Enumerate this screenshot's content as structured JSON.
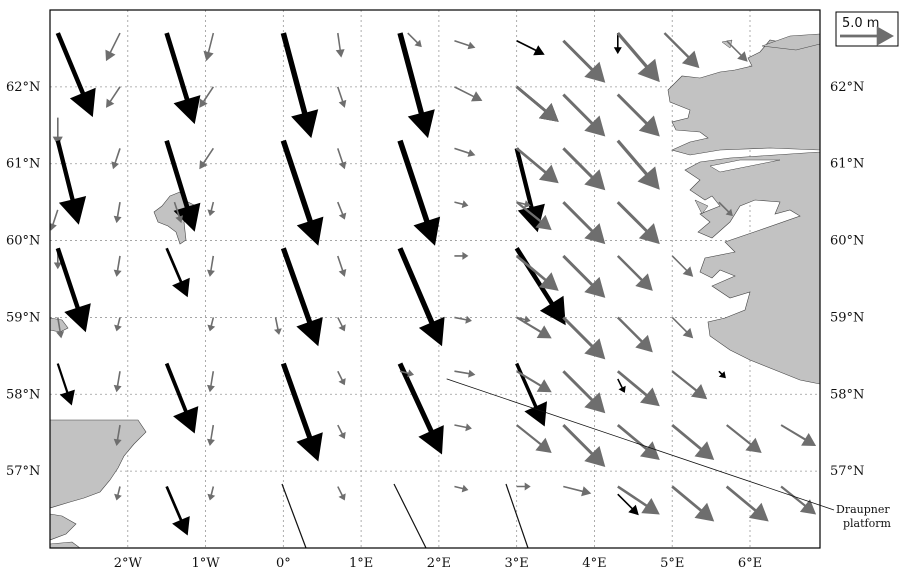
{
  "colors": {
    "land": "#c2c2c2",
    "land_edge": "#444444",
    "arrow_black": "#000000",
    "arrow_grey": "#6e6e6e",
    "grid": "#999999",
    "frame": "#000000",
    "background": "#ffffff"
  },
  "scale_arrow": {
    "label": "5.0 m",
    "length_m": 5.0
  },
  "lon_ticks": [
    {
      "value": -2,
      "label": "2°W"
    },
    {
      "value": -1,
      "label": "1°W"
    },
    {
      "value": 0,
      "label": "0°"
    },
    {
      "value": 1,
      "label": "1°E"
    },
    {
      "value": 2,
      "label": "2°E"
    },
    {
      "value": 3,
      "label": "3°E"
    },
    {
      "value": 4,
      "label": "4°E"
    },
    {
      "value": 5,
      "label": "5°E"
    },
    {
      "value": 6,
      "label": "6°E"
    }
  ],
  "lat_ticks": [
    {
      "value": 62,
      "label": "62°N"
    },
    {
      "value": 61,
      "label": "61°N"
    },
    {
      "value": 60,
      "label": "60°N"
    },
    {
      "value": 59,
      "label": "59°N"
    },
    {
      "value": 58,
      "label": "58°N"
    },
    {
      "value": 57,
      "label": "57°N"
    }
  ],
  "extent": {
    "lon": [
      -3.0,
      6.9
    ],
    "lat": [
      56.0,
      63.0
    ]
  },
  "annotation": {
    "lines": [
      "Draupner",
      "platform"
    ],
    "lon": 2.1,
    "lat": 58.2
  },
  "arrows": [
    {
      "lon": -2.9,
      "lat": 62.7,
      "u": 0.5,
      "v": -1.2,
      "c": "k"
    },
    {
      "lon": -2.1,
      "lat": 62.7,
      "u": -0.2,
      "v": -0.4,
      "c": "g"
    },
    {
      "lon": -1.5,
      "lat": 62.7,
      "u": 0.4,
      "v": -1.3,
      "c": "k"
    },
    {
      "lon": -0.9,
      "lat": 62.7,
      "u": -0.1,
      "v": -0.4,
      "c": "g"
    },
    {
      "lon": 0.0,
      "lat": 62.7,
      "u": 0.4,
      "v": -1.5,
      "c": "k"
    },
    {
      "lon": 0.7,
      "lat": 62.7,
      "u": 0.05,
      "v": -0.35,
      "c": "g"
    },
    {
      "lon": 1.5,
      "lat": 62.7,
      "u": 0.4,
      "v": -1.5,
      "c": "k"
    },
    {
      "lon": 1.6,
      "lat": 62.7,
      "u": 0.2,
      "v": -0.2,
      "c": "g"
    },
    {
      "lon": 2.2,
      "lat": 62.6,
      "u": 0.3,
      "v": -0.1,
      "c": "g"
    },
    {
      "lon": 3.0,
      "lat": 62.6,
      "u": 0.4,
      "v": -0.2,
      "c": "k"
    },
    {
      "lon": 3.6,
      "lat": 62.6,
      "u": 0.6,
      "v": -0.6,
      "c": "g"
    },
    {
      "lon": 4.3,
      "lat": 62.7,
      "u": 0.0,
      "v": -0.3,
      "c": "k"
    },
    {
      "lon": 4.3,
      "lat": 62.7,
      "u": 0.6,
      "v": -0.7,
      "c": "g"
    },
    {
      "lon": 4.9,
      "lat": 62.7,
      "u": 0.5,
      "v": -0.5,
      "c": "g"
    },
    {
      "lon": 5.7,
      "lat": 62.6,
      "u": 0.3,
      "v": -0.3,
      "c": "g"
    },
    {
      "lon": -2.9,
      "lat": 61.6,
      "u": 0.0,
      "v": -0.4,
      "c": "g"
    },
    {
      "lon": -2.1,
      "lat": 62.0,
      "u": -0.2,
      "v": -0.3,
      "c": "g"
    },
    {
      "lon": -0.9,
      "lat": 62.0,
      "u": -0.2,
      "v": -0.3,
      "c": "g"
    },
    {
      "lon": 0.7,
      "lat": 62.0,
      "u": 0.1,
      "v": -0.3,
      "c": "g"
    },
    {
      "lon": 2.2,
      "lat": 62.0,
      "u": 0.4,
      "v": -0.2,
      "c": "g"
    },
    {
      "lon": 3.0,
      "lat": 62.0,
      "u": 0.6,
      "v": -0.5,
      "c": "k"
    },
    {
      "lon": 3.0,
      "lat": 62.0,
      "u": 0.6,
      "v": -0.5,
      "c": "g"
    },
    {
      "lon": 3.6,
      "lat": 61.9,
      "u": 0.6,
      "v": -0.6,
      "c": "g"
    },
    {
      "lon": 4.3,
      "lat": 61.9,
      "u": 0.6,
      "v": -0.6,
      "c": "g"
    },
    {
      "lon": -2.9,
      "lat": 61.3,
      "u": 0.3,
      "v": -1.2,
      "c": "k"
    },
    {
      "lon": -2.1,
      "lat": 61.2,
      "u": -0.1,
      "v": -0.3,
      "c": "g"
    },
    {
      "lon": -1.5,
      "lat": 61.3,
      "u": 0.4,
      "v": -1.3,
      "c": "k"
    },
    {
      "lon": -0.9,
      "lat": 61.2,
      "u": -0.2,
      "v": -0.3,
      "c": "g"
    },
    {
      "lon": 0.0,
      "lat": 61.3,
      "u": 0.5,
      "v": -1.5,
      "c": "k"
    },
    {
      "lon": 0.7,
      "lat": 61.2,
      "u": 0.1,
      "v": -0.3,
      "c": "g"
    },
    {
      "lon": 1.5,
      "lat": 61.3,
      "u": 0.5,
      "v": -1.5,
      "c": "k"
    },
    {
      "lon": 2.2,
      "lat": 61.2,
      "u": 0.3,
      "v": -0.1,
      "c": "g"
    },
    {
      "lon": 3.0,
      "lat": 61.2,
      "u": 0.3,
      "v": -1.2,
      "c": "k"
    },
    {
      "lon": 3.0,
      "lat": 61.2,
      "u": 0.6,
      "v": -0.5,
      "c": "g"
    },
    {
      "lon": 3.6,
      "lat": 61.2,
      "u": 0.6,
      "v": -0.6,
      "c": "g"
    },
    {
      "lon": 4.3,
      "lat": 61.3,
      "u": 0.6,
      "v": -0.7,
      "c": "g"
    },
    {
      "lon": -2.9,
      "lat": 60.4,
      "u": -0.1,
      "v": -0.3,
      "c": "g"
    },
    {
      "lon": -2.1,
      "lat": 60.5,
      "u": -0.05,
      "v": -0.3,
      "c": "g"
    },
    {
      "lon": -1.4,
      "lat": 60.5,
      "u": 0.1,
      "v": -0.3,
      "c": "g"
    },
    {
      "lon": -0.9,
      "lat": 60.5,
      "u": -0.05,
      "v": -0.2,
      "c": "g"
    },
    {
      "lon": 0.7,
      "lat": 60.5,
      "u": 0.1,
      "v": -0.25,
      "c": "g"
    },
    {
      "lon": 2.2,
      "lat": 60.5,
      "u": 0.2,
      "v": -0.05,
      "c": "g"
    },
    {
      "lon": 3.0,
      "lat": 60.5,
      "u": 0.2,
      "v": -0.05,
      "c": "g"
    },
    {
      "lon": 3.0,
      "lat": 60.5,
      "u": 0.5,
      "v": -0.4,
      "c": "g"
    },
    {
      "lon": 3.6,
      "lat": 60.5,
      "u": 0.6,
      "v": -0.6,
      "c": "g"
    },
    {
      "lon": 4.3,
      "lat": 60.5,
      "u": 0.6,
      "v": -0.6,
      "c": "g"
    },
    {
      "lon": 5.6,
      "lat": 60.5,
      "u": 0.2,
      "v": -0.2,
      "c": "g"
    },
    {
      "lon": -2.9,
      "lat": 59.9,
      "u": 0.0,
      "v": -0.3,
      "c": "g"
    },
    {
      "lon": -2.9,
      "lat": 59.9,
      "u": 0.4,
      "v": -1.2,
      "c": "k"
    },
    {
      "lon": -2.1,
      "lat": 59.8,
      "u": -0.05,
      "v": -0.3,
      "c": "g"
    },
    {
      "lon": -1.5,
      "lat": 59.9,
      "u": 0.3,
      "v": -0.7,
      "c": "k"
    },
    {
      "lon": -0.9,
      "lat": 59.8,
      "u": -0.05,
      "v": -0.3,
      "c": "g"
    },
    {
      "lon": 0.0,
      "lat": 59.9,
      "u": 0.5,
      "v": -1.4,
      "c": "k"
    },
    {
      "lon": 0.7,
      "lat": 59.8,
      "u": 0.1,
      "v": -0.3,
      "c": "g"
    },
    {
      "lon": 1.5,
      "lat": 59.9,
      "u": 0.6,
      "v": -1.4,
      "c": "k"
    },
    {
      "lon": 2.2,
      "lat": 59.8,
      "u": 0.2,
      "v": 0.0,
      "c": "g"
    },
    {
      "lon": 3.0,
      "lat": 59.9,
      "u": 0.7,
      "v": -1.1,
      "c": "k"
    },
    {
      "lon": 3.0,
      "lat": 59.8,
      "u": 0.6,
      "v": -0.5,
      "c": "g"
    },
    {
      "lon": 3.6,
      "lat": 59.8,
      "u": 0.6,
      "v": -0.6,
      "c": "g"
    },
    {
      "lon": 4.3,
      "lat": 59.8,
      "u": 0.5,
      "v": -0.5,
      "c": "g"
    },
    {
      "lon": 5.0,
      "lat": 59.8,
      "u": 0.3,
      "v": -0.3,
      "c": "g"
    },
    {
      "lon": -2.9,
      "lat": 59.0,
      "u": 0.05,
      "v": -0.3,
      "c": "g"
    },
    {
      "lon": -2.1,
      "lat": 59.0,
      "u": -0.05,
      "v": -0.2,
      "c": "g"
    },
    {
      "lon": -0.9,
      "lat": 59.0,
      "u": -0.05,
      "v": -0.2,
      "c": "g"
    },
    {
      "lon": -0.1,
      "lat": 59.0,
      "u": 0.05,
      "v": -0.25,
      "c": "g"
    },
    {
      "lon": 0.7,
      "lat": 59.0,
      "u": 0.1,
      "v": -0.2,
      "c": "g"
    },
    {
      "lon": 2.2,
      "lat": 59.0,
      "u": 0.25,
      "v": -0.05,
      "c": "g"
    },
    {
      "lon": 3.0,
      "lat": 59.0,
      "u": 0.2,
      "v": -0.05,
      "c": "g"
    },
    {
      "lon": 3.0,
      "lat": 59.0,
      "u": 0.5,
      "v": -0.3,
      "c": "g"
    },
    {
      "lon": 3.6,
      "lat": 59.0,
      "u": 0.6,
      "v": -0.6,
      "c": "g"
    },
    {
      "lon": 4.3,
      "lat": 59.0,
      "u": 0.5,
      "v": -0.5,
      "c": "g"
    },
    {
      "lon": 5.0,
      "lat": 59.0,
      "u": 0.3,
      "v": -0.3,
      "c": "g"
    },
    {
      "lon": -2.9,
      "lat": 58.4,
      "u": 0.2,
      "v": -0.6,
      "c": "k"
    },
    {
      "lon": -2.1,
      "lat": 58.3,
      "u": -0.05,
      "v": -0.3,
      "c": "g"
    },
    {
      "lon": -1.5,
      "lat": 58.4,
      "u": 0.4,
      "v": -1.0,
      "c": "k"
    },
    {
      "lon": -0.9,
      "lat": 58.3,
      "u": -0.05,
      "v": -0.3,
      "c": "g"
    },
    {
      "lon": 0.0,
      "lat": 58.4,
      "u": 0.5,
      "v": -1.4,
      "c": "k"
    },
    {
      "lon": 0.7,
      "lat": 58.3,
      "u": 0.1,
      "v": -0.2,
      "c": "g"
    },
    {
      "lon": 1.5,
      "lat": 58.4,
      "u": 0.6,
      "v": -1.3,
      "c": "k"
    },
    {
      "lon": 1.5,
      "lat": 58.3,
      "u": 0.2,
      "v": -0.05,
      "c": "g"
    },
    {
      "lon": 2.2,
      "lat": 58.3,
      "u": 0.3,
      "v": -0.05,
      "c": "g"
    },
    {
      "lon": 3.0,
      "lat": 58.4,
      "u": 0.4,
      "v": -0.9,
      "c": "k"
    },
    {
      "lon": 3.0,
      "lat": 58.3,
      "u": 0.5,
      "v": -0.3,
      "c": "g"
    },
    {
      "lon": 3.6,
      "lat": 58.3,
      "u": 0.6,
      "v": -0.6,
      "c": "g"
    },
    {
      "lon": 4.3,
      "lat": 58.2,
      "u": 0.1,
      "v": -0.2,
      "c": "k"
    },
    {
      "lon": 4.3,
      "lat": 58.3,
      "u": 0.6,
      "v": -0.5,
      "c": "g"
    },
    {
      "lon": 5.0,
      "lat": 58.3,
      "u": 0.5,
      "v": -0.4,
      "c": "g"
    },
    {
      "lon": 5.6,
      "lat": 58.3,
      "u": 0.1,
      "v": -0.1,
      "c": "k"
    },
    {
      "lon": -2.1,
      "lat": 57.6,
      "u": -0.05,
      "v": -0.3,
      "c": "g"
    },
    {
      "lon": -0.9,
      "lat": 57.6,
      "u": -0.05,
      "v": -0.3,
      "c": "g"
    },
    {
      "lon": 0.7,
      "lat": 57.6,
      "u": 0.1,
      "v": -0.2,
      "c": "g"
    },
    {
      "lon": 2.2,
      "lat": 57.6,
      "u": 0.25,
      "v": -0.05,
      "c": "g"
    },
    {
      "lon": 3.0,
      "lat": 57.6,
      "u": 0.5,
      "v": -0.4,
      "c": "g"
    },
    {
      "lon": 3.6,
      "lat": 57.6,
      "u": 0.6,
      "v": -0.6,
      "c": "g"
    },
    {
      "lon": 4.3,
      "lat": 57.6,
      "u": 0.6,
      "v": -0.5,
      "c": "g"
    },
    {
      "lon": 5.0,
      "lat": 57.6,
      "u": 0.6,
      "v": -0.5,
      "c": "g"
    },
    {
      "lon": 5.7,
      "lat": 57.6,
      "u": 0.5,
      "v": -0.4,
      "c": "g"
    },
    {
      "lon": 6.4,
      "lat": 57.6,
      "u": 0.5,
      "v": -0.3,
      "c": "g"
    },
    {
      "lon": -2.1,
      "lat": 56.8,
      "u": -0.05,
      "v": -0.2,
      "c": "g"
    },
    {
      "lon": -1.5,
      "lat": 56.8,
      "u": 0.3,
      "v": -0.7,
      "c": "k"
    },
    {
      "lon": -0.9,
      "lat": 56.8,
      "u": -0.05,
      "v": -0.2,
      "c": "g"
    },
    {
      "lon": 0.7,
      "lat": 56.8,
      "u": 0.1,
      "v": -0.2,
      "c": "g"
    },
    {
      "lon": 2.2,
      "lat": 56.8,
      "u": 0.2,
      "v": -0.05,
      "c": "g"
    },
    {
      "lon": 3.0,
      "lat": 56.8,
      "u": 0.2,
      "v": 0.0,
      "c": "g"
    },
    {
      "lon": 3.6,
      "lat": 56.8,
      "u": 0.4,
      "v": -0.1,
      "c": "g"
    },
    {
      "lon": 4.3,
      "lat": 56.7,
      "u": 0.3,
      "v": -0.3,
      "c": "k"
    },
    {
      "lon": 4.3,
      "lat": 56.8,
      "u": 0.6,
      "v": -0.4,
      "c": "g"
    },
    {
      "lon": 5.0,
      "lat": 56.8,
      "u": 0.6,
      "v": -0.5,
      "c": "g"
    },
    {
      "lon": 5.7,
      "lat": 56.8,
      "u": 0.6,
      "v": -0.5,
      "c": "g"
    },
    {
      "lon": 6.4,
      "lat": 56.8,
      "u": 0.5,
      "v": -0.4,
      "c": "g"
    }
  ]
}
